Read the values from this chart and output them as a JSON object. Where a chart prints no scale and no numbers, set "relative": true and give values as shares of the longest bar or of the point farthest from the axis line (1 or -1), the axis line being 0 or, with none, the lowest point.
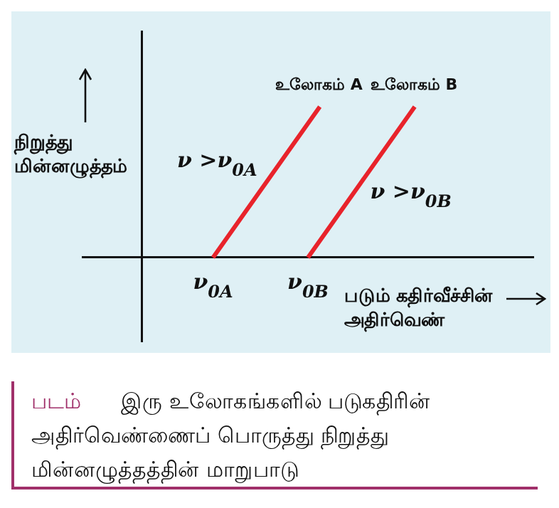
{
  "chart_data": {
    "type": "line",
    "relative": true,
    "marker": "none",
    "ylabel": "நிறுத்து மின்னழுத்தம்",
    "xlabel": "படும் கதிர்வீச்சின் அதிர்வெண்",
    "categories": [
      null,
      null,
      null,
      null,
      null,
      null,
      null,
      null,
      null,
      null,
      null,
      "ν$_{0A}$",
      null,
      null,
      null,
      null,
      null,
      null,
      null,
      "ν$_{0B}$",
      null,
      null,
      null,
      null,
      null,
      null,
      null,
      null,
      null,
      null,
      null,
      null,
      null,
      null,
      null,
      null,
      null,
      null,
      null
    ],
    "series": [
      {
        "name": "உலோகம் A",
        "color": "#e8232b",
        "values": [
          null,
          null,
          null,
          null,
          null,
          null,
          null,
          null,
          null,
          null,
          null,
          0,
          null,
          null,
          null,
          null,
          null,
          null,
          null,
          null,
          1,
          null,
          null,
          null,
          null,
          null,
          null,
          null,
          null,
          null,
          null,
          null,
          null,
          null,
          null,
          null,
          null,
          null,
          null
        ]
      },
      {
        "name": "உலோகம் B",
        "color": "#e8232b",
        "values": [
          null,
          null,
          null,
          null,
          null,
          null,
          null,
          null,
          null,
          null,
          null,
          null,
          null,
          null,
          null,
          null,
          null,
          null,
          null,
          0,
          null,
          null,
          null,
          null,
          null,
          null,
          null,
          null,
          1,
          null,
          null,
          null,
          null,
          null,
          null,
          null,
          null,
          null,
          null
        ]
      }
    ],
    "annotations": [
      "ν >ν$_{0A}$",
      "ν >ν$_{0B}$",
      "படம் இரு உலோகங்களில் படுகதிரின் அதிர்வெண்ணைப் பொருத்து நிறுத்து மின்னழுத்தத்தின் மாறுபாடு"
    ]
  }
}
